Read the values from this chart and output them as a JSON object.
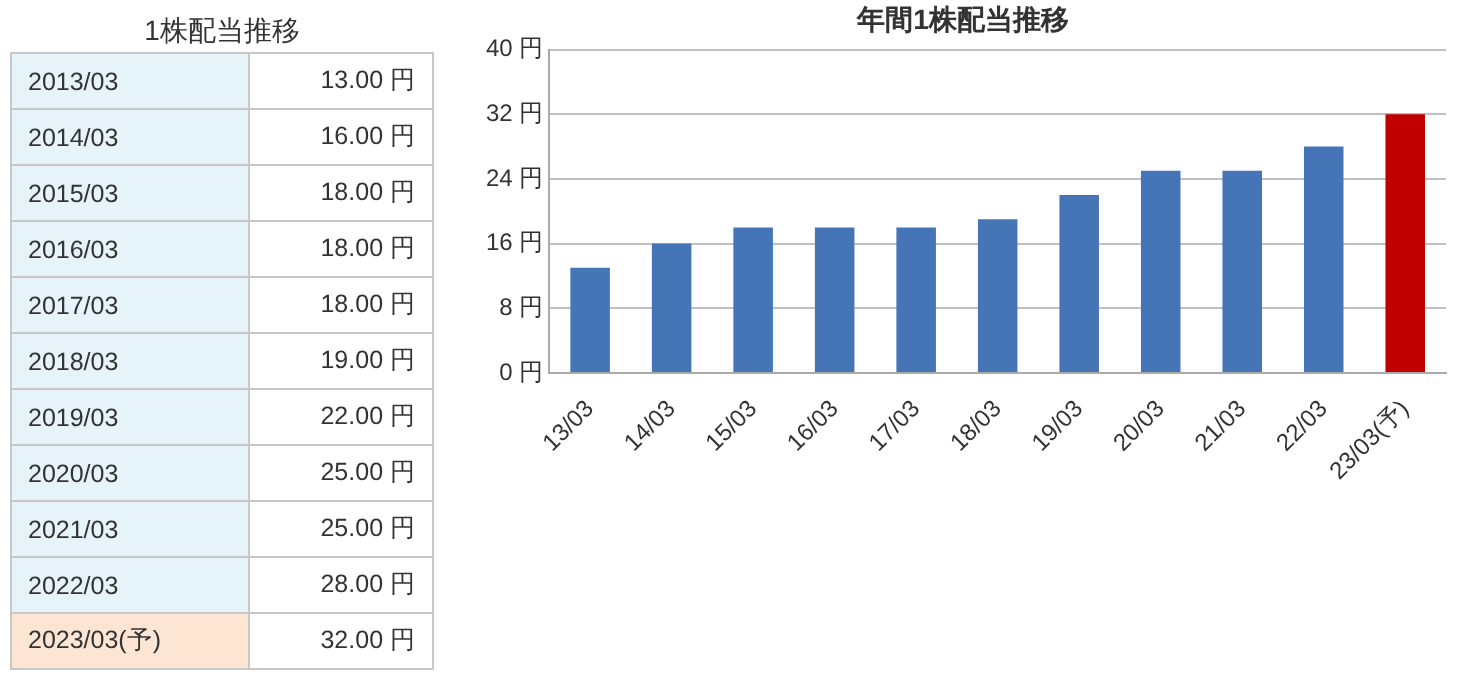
{
  "chart_data": [
    {
      "type": "other",
      "title": "1株配当推移",
      "categories": [
        "2013/03",
        "2014/03",
        "2015/03",
        "2016/03",
        "2017/03",
        "2018/03",
        "2019/03",
        "2020/03",
        "2021/03",
        "2022/03",
        "2023/03(予)"
      ],
      "value_labels": [
        "13.00 円",
        "16.00 円",
        "18.00 円",
        "18.00 円",
        "18.00 円",
        "19.00 円",
        "22.00 円",
        "25.00 円",
        "25.00 円",
        "28.00 円",
        "32.00 円"
      ]
    },
    {
      "type": "bar",
      "title": "年間1株配当推移",
      "categories": [
        "13/03",
        "14/03",
        "15/03",
        "16/03",
        "17/03",
        "18/03",
        "19/03",
        "20/03",
        "21/03",
        "22/03",
        "23/03(予)"
      ],
      "values": [
        13,
        16,
        18,
        18,
        18,
        19,
        22,
        25,
        25,
        28,
        32
      ],
      "colors": [
        "#4575b6",
        "#4575b6",
        "#4575b6",
        "#4575b6",
        "#4575b6",
        "#4575b6",
        "#4575b6",
        "#4575b6",
        "#4575b6",
        "#4575b6",
        "#c00000"
      ],
      "ylim": [
        0,
        40
      ],
      "yticks": [
        {
          "value": 0,
          "label": "0 円"
        },
        {
          "value": 8,
          "label": "8 円"
        },
        {
          "value": 16,
          "label": "16 円"
        },
        {
          "value": 24,
          "label": "24 円"
        },
        {
          "value": 32,
          "label": "32 円"
        },
        {
          "value": 40,
          "label": "40 円"
        }
      ],
      "grid": "y",
      "legend": false
    }
  ]
}
